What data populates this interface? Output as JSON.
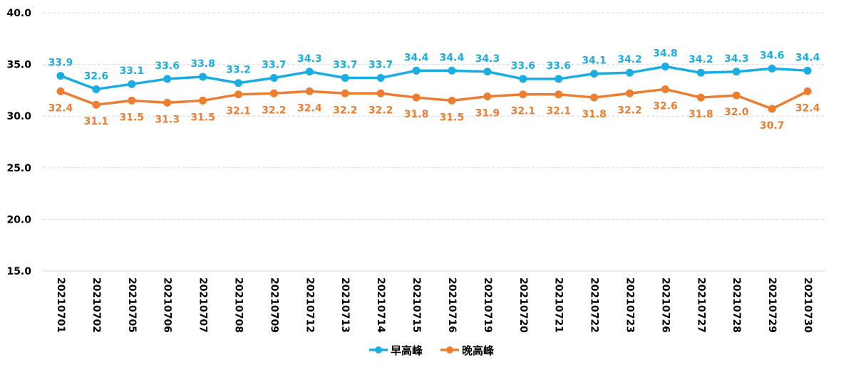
{
  "chart_data": {
    "type": "line",
    "categories": [
      "20210701",
      "20210702",
      "20210705",
      "20210706",
      "20210707",
      "20210708",
      "20210709",
      "20210712",
      "20210713",
      "20210714",
      "20210715",
      "20210716",
      "20210719",
      "20210720",
      "20210721",
      "20210722",
      "20210723",
      "20210726",
      "20210727",
      "20210728",
      "20210729",
      "20210730"
    ],
    "series": [
      {
        "name": "早高峰",
        "color": "#1AADE3",
        "values": [
          33.9,
          32.6,
          33.1,
          33.6,
          33.8,
          33.2,
          33.7,
          34.3,
          33.7,
          33.7,
          34.4,
          34.4,
          34.3,
          33.6,
          33.6,
          34.1,
          34.2,
          34.8,
          34.2,
          34.3,
          34.6,
          34.4
        ],
        "labels": [
          "33.9",
          "32.6",
          "33.1",
          "33.6",
          "33.8",
          "33.2",
          "33.7",
          "34.3",
          "33.7",
          "33.7",
          "34.4",
          "34.4",
          "34.3",
          "33.6",
          "33.6",
          "34.1",
          "34.2",
          "34.8",
          "34.2",
          "34.3",
          "34.6",
          "34.4"
        ]
      },
      {
        "name": "晚高峰",
        "color": "#ED7D31",
        "values": [
          32.4,
          31.1,
          31.5,
          31.3,
          31.5,
          32.1,
          32.2,
          32.4,
          32.2,
          32.2,
          31.8,
          31.5,
          31.9,
          32.1,
          32.1,
          31.8,
          32.2,
          32.6,
          31.8,
          32.0,
          30.7,
          32.4
        ],
        "labels": [
          "32.4",
          "31.1",
          "31.5",
          "31.3",
          "31.5",
          "32.1",
          "32.2",
          "32.4",
          "32.2",
          "32.2",
          "31.8",
          "31.5",
          "31.9",
          "32.1",
          "32.1",
          "31.8",
          "32.2",
          "32.6",
          "31.8",
          "32.0",
          "30.7",
          "32.4"
        ]
      }
    ],
    "ylim": [
      15.0,
      40.0
    ],
    "yticks": [
      "15.0",
      "20.0",
      "25.0",
      "30.0",
      "35.0",
      "40.0"
    ],
    "grid": true,
    "legend_position": "bottom"
  }
}
